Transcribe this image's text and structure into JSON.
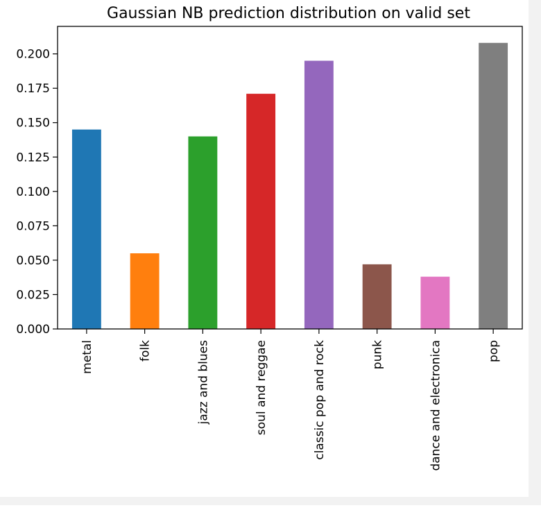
{
  "chart_data": {
    "type": "bar",
    "title": "Gaussian NB prediction distribution on valid set",
    "xlabel": "",
    "ylabel": "",
    "categories": [
      "metal",
      "folk",
      "jazz and blues",
      "soul and reggae",
      "classic pop and rock",
      "punk",
      "dance and electronica",
      "pop"
    ],
    "values": [
      0.145,
      0.055,
      0.14,
      0.171,
      0.195,
      0.047,
      0.038,
      0.208
    ],
    "colors": [
      "#1f77b4",
      "#ff7f0e",
      "#2ca02c",
      "#d62728",
      "#9467bd",
      "#8c564b",
      "#e377c2",
      "#7f7f7f"
    ],
    "ylim": [
      0,
      0.22
    ],
    "yticks": [
      0.0,
      0.025,
      0.05,
      0.075,
      0.1,
      0.125,
      0.15,
      0.175,
      0.2
    ],
    "ytick_labels": [
      "0.000",
      "0.025",
      "0.050",
      "0.075",
      "0.100",
      "0.125",
      "0.150",
      "0.175",
      "0.200"
    ],
    "grid": false,
    "legend": "none"
  }
}
